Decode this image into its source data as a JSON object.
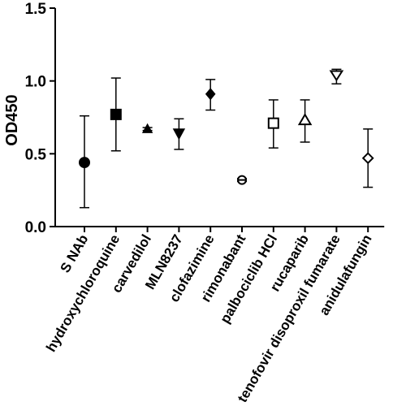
{
  "chart_data": {
    "type": "scatter",
    "ylabel": "OD450",
    "xlabel": "",
    "ylim": [
      0,
      1.5
    ],
    "yticks": [
      "0.0",
      "0.5",
      "1.0",
      "1.5"
    ],
    "grid": false,
    "legend": "none",
    "categories": [
      "S NAb",
      "hydroxychloroquine",
      "carvedilol",
      "MLN8237",
      "clofazimine",
      "rimonabant",
      "palbociclib HCl",
      "rucaparib",
      "tenofovir disoproxil fumarate",
      "anidulafungin"
    ],
    "series": [
      {
        "values": [
          0.44,
          0.77,
          0.67,
          0.64,
          0.91,
          0.32,
          0.71,
          0.73,
          1.04,
          0.47
        ],
        "error_low": [
          0.13,
          0.52,
          0.66,
          0.53,
          0.8,
          0.31,
          0.54,
          0.58,
          0.98,
          0.27
        ],
        "error_high": [
          0.76,
          1.02,
          0.68,
          0.74,
          1.01,
          0.33,
          0.87,
          0.87,
          1.08,
          0.67
        ],
        "markers": [
          "circle",
          "square",
          "triangle-up",
          "triangle-down",
          "diamond",
          "circle-open-cross",
          "square-open",
          "triangle-up-open",
          "triangle-down-open",
          "diamond-open"
        ],
        "color": "#000000"
      }
    ]
  }
}
